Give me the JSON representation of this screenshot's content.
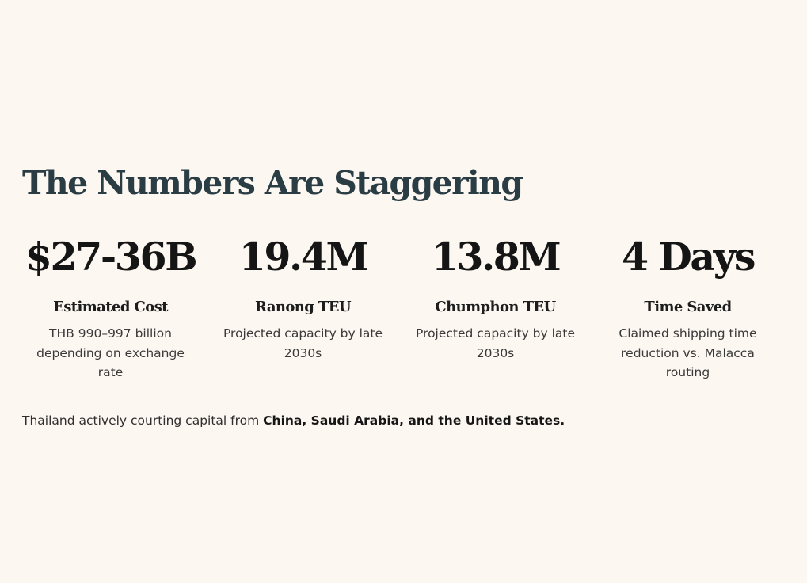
{
  "section": {
    "title": "The Numbers Are Staggering"
  },
  "stats": [
    {
      "value": "$27-36B",
      "label": "Estimated Cost",
      "description": "THB 990–997 billion depending on exchange rate"
    },
    {
      "value": "19.4M",
      "label": "Ranong TEU",
      "description": "Projected capacity by late 2030s"
    },
    {
      "value": "13.8M",
      "label": "Chumphon TEU",
      "description": "Projected capacity by late 2030s"
    },
    {
      "value": "4 Days",
      "label": "Time Saved",
      "description": "Claimed shipping time reduction vs. Malacca routing"
    }
  ],
  "footer": {
    "text": "Thailand actively courting capital from ",
    "emphasis": "China, Saudi Arabia, and the United States."
  },
  "colors": {
    "background": "#fdf7f1",
    "heading": "#2b3d44",
    "stat_value": "#151515",
    "body_text": "#3a3a3a"
  }
}
